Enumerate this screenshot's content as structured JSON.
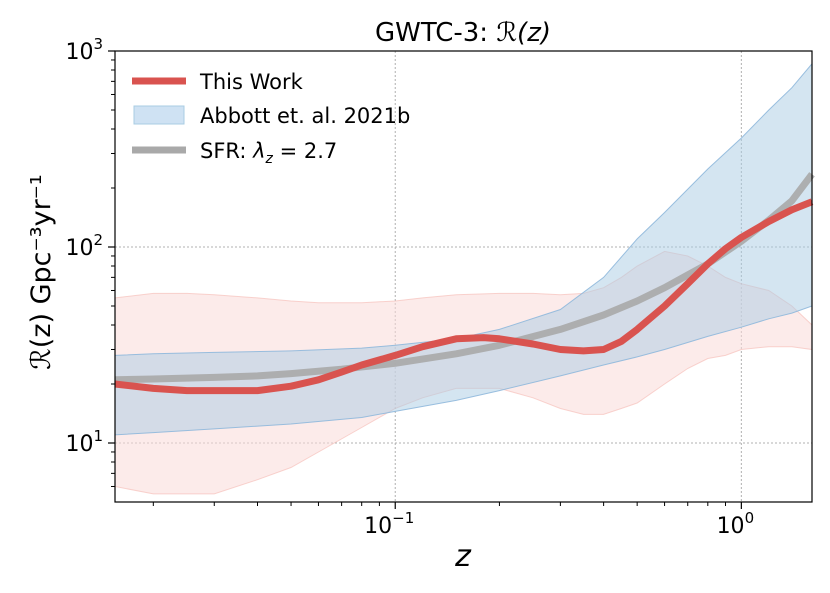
{
  "chart_data": {
    "type": "line",
    "title_prefix": "GWTC-3: ",
    "title_math": "ℛ(z)",
    "xlabel": "z",
    "ylabel": "ℛ(z) Gpc⁻³yr⁻¹",
    "x_scale": "log",
    "y_scale": "log",
    "xlim": [
      0.0155,
      1.6
    ],
    "ylim": [
      5,
      1000
    ],
    "grid": true,
    "legend_position": "top-left",
    "x_ticks": [
      {
        "value": 0.1,
        "base": "10",
        "exp": "−1"
      },
      {
        "value": 1,
        "base": "10",
        "exp": "0"
      }
    ],
    "y_ticks": [
      {
        "value": 10,
        "base": "10",
        "exp": "1"
      },
      {
        "value": 100,
        "base": "10",
        "exp": "2"
      },
      {
        "value": 1000,
        "base": "10",
        "exp": "3"
      }
    ],
    "legend": [
      {
        "label": "This Work",
        "style": "line",
        "color": "#d9534f"
      },
      {
        "label": "Abbott et. al. 2021b",
        "style": "band",
        "color": "#a9cce3"
      },
      {
        "label": "SFR: λ_z = 2.7",
        "text": "SFR: ",
        "math": "λ",
        "math_sub": "z",
        "math_rest": " = 2.7",
        "style": "line",
        "color": "#a9a9a9"
      }
    ],
    "series": [
      {
        "name": "This Work",
        "kind": "median",
        "color": "#d9534f",
        "x": [
          0.0155,
          0.02,
          0.025,
          0.03,
          0.04,
          0.05,
          0.06,
          0.07,
          0.08,
          0.1,
          0.12,
          0.15,
          0.18,
          0.2,
          0.25,
          0.3,
          0.35,
          0.4,
          0.45,
          0.5,
          0.6,
          0.7,
          0.8,
          0.9,
          1.0,
          1.2,
          1.4,
          1.6
        ],
        "y": [
          20,
          19,
          18.5,
          18.5,
          18.5,
          19.5,
          21,
          23,
          25,
          28,
          31,
          34,
          34.5,
          34,
          32,
          30,
          29.5,
          30,
          33,
          38,
          50,
          65,
          82,
          98,
          112,
          135,
          155,
          170
        ]
      },
      {
        "name": "This Work 90% interval",
        "kind": "band",
        "color": "#f5b7b1",
        "x": [
          0.0155,
          0.02,
          0.025,
          0.03,
          0.04,
          0.05,
          0.06,
          0.08,
          0.1,
          0.12,
          0.15,
          0.2,
          0.25,
          0.3,
          0.35,
          0.4,
          0.45,
          0.5,
          0.6,
          0.7,
          0.8,
          0.9,
          1.0,
          1.2,
          1.4,
          1.6
        ],
        "lower": [
          6,
          5.5,
          5.5,
          5.5,
          6.5,
          7.5,
          9,
          12,
          15,
          17,
          19,
          19,
          17,
          15,
          14,
          14,
          15,
          16,
          20,
          24,
          27,
          28,
          30,
          31,
          31,
          30
        ],
        "upper": [
          55,
          58,
          58,
          57,
          55,
          53,
          52,
          52,
          53,
          55,
          57,
          58,
          58,
          57,
          58,
          62,
          70,
          80,
          95,
          90,
          80,
          70,
          65,
          60,
          50,
          40
        ]
      },
      {
        "name": "Abbott et. al. 2021b",
        "kind": "band",
        "color": "#a9cce3",
        "x": [
          0.0155,
          0.02,
          0.03,
          0.05,
          0.08,
          0.1,
          0.15,
          0.2,
          0.3,
          0.4,
          0.5,
          0.6,
          0.8,
          1.0,
          1.2,
          1.4,
          1.6
        ],
        "lower": [
          11,
          11.3,
          11.8,
          12.5,
          13.5,
          14.5,
          16.5,
          18.5,
          22,
          25,
          27.5,
          30,
          35,
          39,
          43,
          46,
          50
        ],
        "upper": [
          28,
          28.5,
          29,
          29.5,
          30.5,
          31.5,
          34,
          38,
          48,
          70,
          110,
          150,
          250,
          360,
          500,
          650,
          860
        ]
      },
      {
        "name": "SFR: λ_z = 2.7",
        "kind": "line",
        "color": "#a9a9a9",
        "x": [
          0.0155,
          0.02,
          0.03,
          0.04,
          0.05,
          0.07,
          0.1,
          0.15,
          0.2,
          0.3,
          0.4,
          0.5,
          0.6,
          0.7,
          0.8,
          1.0,
          1.2,
          1.4,
          1.6
        ],
        "y": [
          21,
          21.2,
          21.6,
          22,
          22.6,
          23.8,
          25.5,
          28.5,
          31.5,
          38,
          45,
          53,
          62,
          72,
          82,
          107,
          137,
          172,
          235
        ]
      }
    ]
  }
}
